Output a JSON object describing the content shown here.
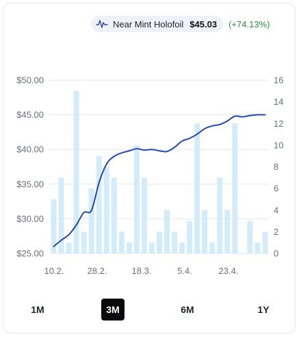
{
  "legend": {
    "icon": "price-line-icon",
    "name": "Near Mint Holofoil",
    "value": "$45.03",
    "change": "(+74.13%)",
    "change_color": "#2e8b3e"
  },
  "ranges": [
    {
      "label": "1M",
      "active": false
    },
    {
      "label": "3M",
      "active": true
    },
    {
      "label": "6M",
      "active": false
    },
    {
      "label": "1Y",
      "active": false
    }
  ],
  "chart_data": {
    "type": "bar+line",
    "x_tick_labels": [
      "10.2.",
      "28.2.",
      "18.3.",
      "5.4.",
      "23.4."
    ],
    "y_left": {
      "ticks": [
        "$25.00",
        "$30.00",
        "$35.00",
        "$40.00",
        "$45.00",
        "$50.00"
      ],
      "range": [
        25,
        50
      ]
    },
    "y_right": {
      "ticks": [
        "0",
        "2",
        "4",
        "6",
        "8",
        "10",
        "12",
        "14",
        "16"
      ],
      "range": [
        0,
        16
      ]
    },
    "grid": true,
    "colors": {
      "line": "#1f46b8",
      "bars": "#d2ecfb",
      "grid": "#e3e5e8"
    },
    "bar_values": [
      5,
      7,
      1,
      15,
      2,
      6,
      9,
      8,
      7,
      2,
      1,
      10,
      7,
      1,
      2,
      4,
      2,
      1,
      3,
      12,
      4,
      1,
      7,
      4,
      12,
      0,
      3,
      1,
      2
    ],
    "price_values": [
      26.0,
      26.9,
      27.7,
      29.1,
      30.9,
      31.2,
      35.2,
      37.9,
      39.0,
      39.5,
      39.8,
      40.1,
      39.9,
      40.0,
      39.8,
      39.7,
      40.3,
      41.2,
      41.6,
      42.2,
      43.0,
      43.4,
      43.6,
      44.1,
      44.8,
      44.7,
      44.9,
      45.0,
      45.0
    ]
  }
}
